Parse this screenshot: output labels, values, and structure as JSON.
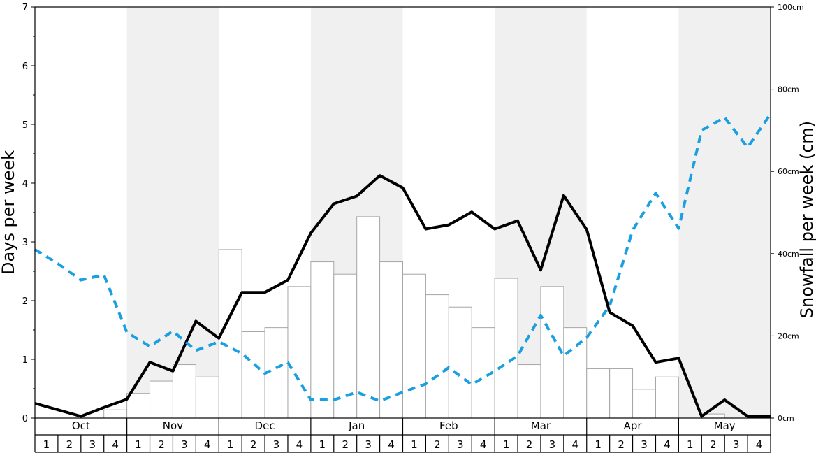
{
  "chart_data": {
    "type": "bar",
    "months": [
      "Oct",
      "Nov",
      "Dec",
      "Jan",
      "Feb",
      "Mar",
      "Apr",
      "May"
    ],
    "weeks": [
      "1",
      "2",
      "3",
      "4"
    ],
    "ylabel_left": "Days per week",
    "ylabel_right": "Snowfall per week (cm)",
    "ylim_left": [
      0,
      7
    ],
    "yticks_left": [
      "0",
      "1",
      "2",
      "3",
      "4",
      "5",
      "6",
      "7"
    ],
    "ylim_right": [
      0,
      100
    ],
    "yticks_right": [
      "0cm",
      "20cm",
      "40cm",
      "60cm",
      "80cm",
      "100cm"
    ],
    "alternate_month_shading": true,
    "colors": {
      "bar_fill": "#ffffff",
      "bar_stroke": "#a6a6a6",
      "shade": "#f0f0f0",
      "line_black": "#000000",
      "line_dashed": "#1a9fe0"
    },
    "series": [
      {
        "type": "bar",
        "axis": "right",
        "values": [
          0,
          0,
          0,
          2,
          6,
          9,
          13,
          10,
          41,
          21,
          22,
          32,
          38,
          35,
          49,
          38,
          35,
          30,
          27,
          22,
          34,
          13,
          32,
          22,
          12,
          12,
          7,
          10,
          0,
          1,
          0,
          0
        ]
      },
      {
        "type": "line",
        "style": "solid",
        "axis": "left",
        "values": [
          0.25,
          0.14,
          0.03,
          0.18,
          0.32,
          0.95,
          0.8,
          1.65,
          1.36,
          2.14,
          2.14,
          2.35,
          3.15,
          3.65,
          3.78,
          4.13,
          3.92,
          3.22,
          3.29,
          3.51,
          3.22,
          3.36,
          2.52,
          3.79,
          3.21,
          1.8,
          1.57,
          0.95,
          1.02,
          0.03,
          0.31,
          0.03,
          0.03
        ]
      },
      {
        "type": "line",
        "style": "dashed",
        "axis": "left",
        "values": [
          2.87,
          2.63,
          2.35,
          2.44,
          1.46,
          1.22,
          1.48,
          1.15,
          1.3,
          1.1,
          0.76,
          0.95,
          0.31,
          0.31,
          0.44,
          0.29,
          0.44,
          0.58,
          0.86,
          0.57,
          0.8,
          1.06,
          1.75,
          1.06,
          1.37,
          1.91,
          3.2,
          3.83,
          3.23,
          4.9,
          5.12,
          4.61,
          5.18
        ]
      }
    ]
  }
}
